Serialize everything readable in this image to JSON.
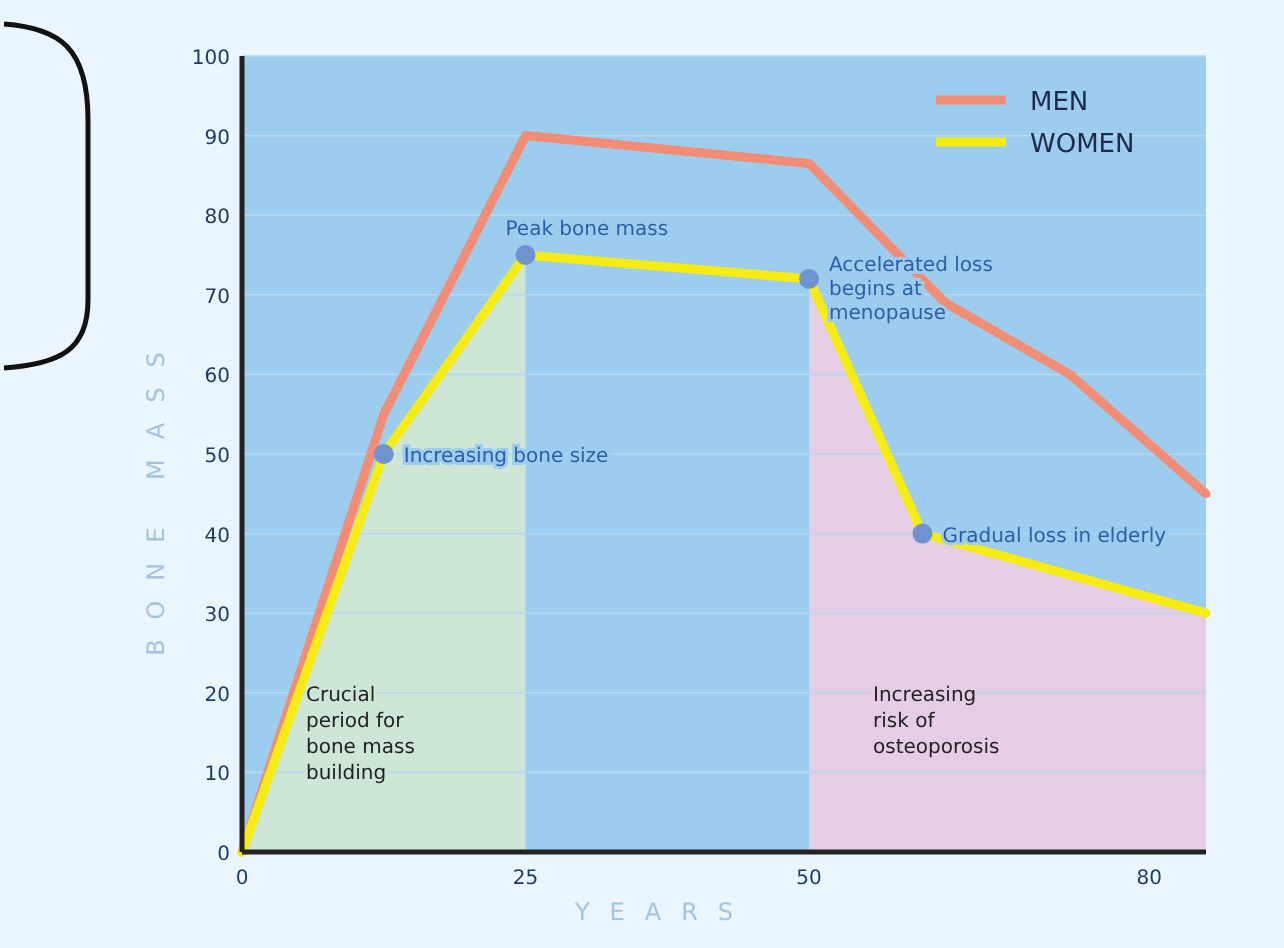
{
  "chart_data": {
    "type": "line",
    "xlabel": "YEARS",
    "ylabel": "BONE MASS",
    "xlim": [
      0,
      85
    ],
    "xticks": [
      0,
      25,
      50,
      80
    ],
    "ylim": [
      0,
      100
    ],
    "yticks": [
      0,
      10,
      20,
      30,
      40,
      50,
      60,
      70,
      80,
      90,
      100
    ],
    "grid": "y",
    "legend": "top right",
    "series": [
      {
        "name": "MEN",
        "color": "#f28c74",
        "x": [
          0,
          12.5,
          25,
          50,
          62,
          73,
          85
        ],
        "values": [
          0,
          55,
          90,
          86.5,
          69,
          60,
          45
        ]
      },
      {
        "name": "WOMEN",
        "color": "#f7ec10",
        "x": [
          0,
          12.5,
          25,
          50,
          60,
          85
        ],
        "values": [
          0,
          50,
          75,
          72,
          40,
          30
        ]
      }
    ],
    "bands": [
      {
        "axis": "x",
        "from": 0,
        "to": 25,
        "label": "Crucial period for bone mass building",
        "color": "#cde6d6"
      },
      {
        "axis": "x",
        "from": 50,
        "to": 85,
        "label": "Increasing risk of osteoporosis",
        "color": "#e6cde6"
      }
    ],
    "annotations": [
      {
        "text": "Increasing bone size",
        "x": 12.5,
        "y": 50
      },
      {
        "text": "Peak bone mass",
        "x": 25,
        "y": 75
      },
      {
        "text": "Accelerated loss begins at menopause",
        "x": 50,
        "y": 72
      },
      {
        "text": "Gradual loss in elderly",
        "x": 60,
        "y": 40
      }
    ]
  }
}
